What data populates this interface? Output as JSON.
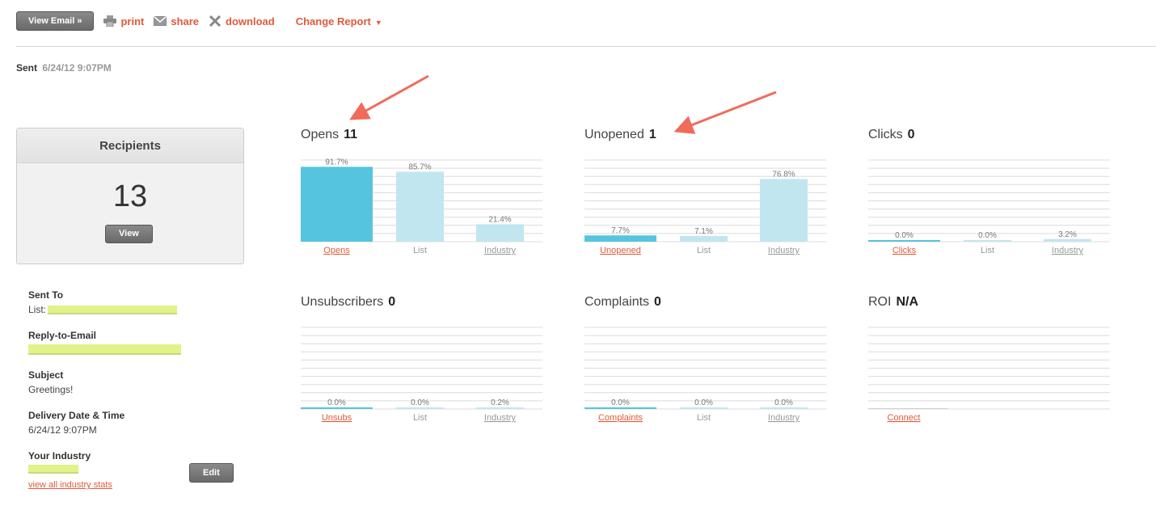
{
  "toolbar": {
    "view_email": "View Email »",
    "print": "print",
    "share": "share",
    "download": "download",
    "change_report": "Change Report",
    "icons": {
      "print": "printer-icon",
      "share": "envelope-icon",
      "download": "download-icon",
      "caret": "caret-down-icon"
    }
  },
  "sent": {
    "label": "Sent",
    "value": "6/24/12 9:07PM"
  },
  "recipients": {
    "title": "Recipients",
    "count": "13",
    "view": "View"
  },
  "details": {
    "sent_to": {
      "label": "Sent To",
      "prefix": "List:"
    },
    "reply_to": {
      "label": "Reply-to-Email"
    },
    "subject": {
      "label": "Subject",
      "value": "Greetings!"
    },
    "delivery": {
      "label": "Delivery Date & Time",
      "value": "6/24/12 9:07PM"
    },
    "industry": {
      "label": "Your Industry",
      "edit": "Edit",
      "link": "view all industry stats"
    }
  },
  "colors": {
    "accent": "#e05a3a",
    "bar_primary": "#55c4de",
    "bar_secondary": "#c2e6f0",
    "annotation": "#ef6c5a"
  },
  "chart_data": [
    {
      "type": "bar",
      "title": "Opens",
      "count": "11",
      "categories": [
        "Opens",
        "List",
        "Industry"
      ],
      "values": [
        91.7,
        85.7,
        21.4
      ],
      "labels": [
        "91.7%",
        "85.7%",
        "21.4%"
      ],
      "ylim": [
        0,
        100
      ]
    },
    {
      "type": "bar",
      "title": "Unopened",
      "count": "1",
      "categories": [
        "Unopened",
        "List",
        "Industry"
      ],
      "values": [
        7.7,
        7.1,
        76.8
      ],
      "labels": [
        "7.7%",
        "7.1%",
        "76.8%"
      ],
      "ylim": [
        0,
        100
      ]
    },
    {
      "type": "bar",
      "title": "Clicks",
      "count": "0",
      "categories": [
        "Clicks",
        "List",
        "Industry"
      ],
      "values": [
        0.0,
        0.0,
        3.2
      ],
      "labels": [
        "0.0%",
        "0.0%",
        "3.2%"
      ],
      "ylim": [
        0,
        100
      ]
    },
    {
      "type": "bar",
      "title": "Unsubscribers",
      "count": "0",
      "categories": [
        "Unsubs",
        "List",
        "Industry"
      ],
      "values": [
        0.0,
        0.0,
        0.2
      ],
      "labels": [
        "0.0%",
        "0.0%",
        "0.2%"
      ],
      "ylim": [
        0,
        100
      ]
    },
    {
      "type": "bar",
      "title": "Complaints",
      "count": "0",
      "categories": [
        "Complaints",
        "List",
        "Industry"
      ],
      "values": [
        0.0,
        0.0,
        0.0
      ],
      "labels": [
        "0.0%",
        "0.0%",
        "0.0%"
      ],
      "ylim": [
        0,
        100
      ]
    },
    {
      "type": "bar",
      "title": "ROI",
      "count": "N/A",
      "categories": [
        "Connect"
      ],
      "values": [],
      "labels": [],
      "ylim": [
        0,
        100
      ]
    }
  ]
}
